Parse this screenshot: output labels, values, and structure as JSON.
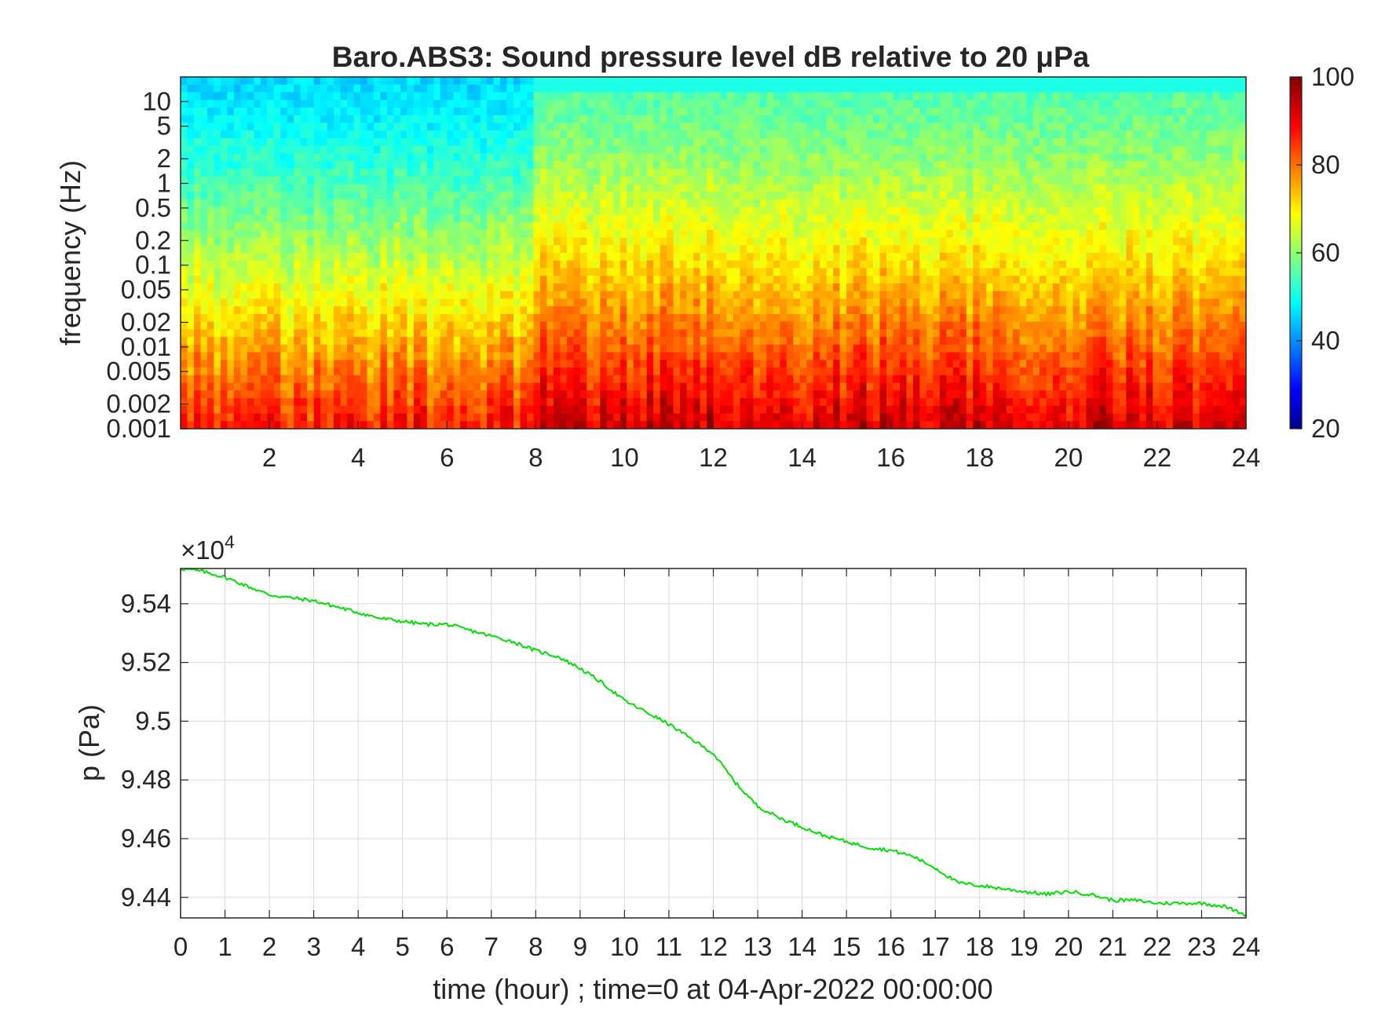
{
  "chart_data": [
    {
      "type": "heatmap",
      "title": "Baro.ABS3: Sound pressure level dB relative to 20 μPa",
      "ylabel": "frequency (Hz)",
      "xlabel": "",
      "x_ticks": [
        2,
        4,
        6,
        8,
        10,
        12,
        14,
        16,
        18,
        20,
        22,
        24
      ],
      "xlim": [
        0,
        24
      ],
      "y_scale": "log",
      "y_ticks": [
        "10",
        "5",
        "2",
        "1",
        "0.5",
        "0.2",
        "0.1",
        "0.05",
        "0.02",
        "0.01",
        "0.005",
        "0.002",
        "0.001"
      ],
      "y_tick_values": [
        10,
        5,
        2,
        1,
        0.5,
        0.2,
        0.1,
        0.05,
        0.02,
        0.01,
        0.005,
        0.002,
        0.001
      ],
      "ylim": [
        0.001,
        20
      ],
      "colormap": "jet",
      "colorbar": {
        "range": [
          20,
          100
        ],
        "ticks": [
          "100",
          "80",
          "60",
          "40",
          "20"
        ],
        "tick_values": [
          100,
          80,
          60,
          40,
          20
        ]
      },
      "time_segments": [
        {
          "from_hour": 0,
          "to_hour": 7.9,
          "high_freq_dB": 47,
          "low_freq_dB": 88
        },
        {
          "from_hour": 7.9,
          "to_hour": 24,
          "high_freq_dB": 56,
          "low_freq_dB": 94
        }
      ],
      "grid": false
    },
    {
      "type": "line",
      "xlabel": "time (hour) ; time=0 at 04-Apr-2022 00:00:00",
      "ylabel": "p (Pa)",
      "y_multiplier": "×10",
      "y_multiplier_exp": "4",
      "xlim": [
        0,
        24
      ],
      "ylim": [
        9.433,
        9.552
      ],
      "x_ticks": [
        "0",
        "1",
        "2",
        "3",
        "4",
        "5",
        "6",
        "7",
        "8",
        "9",
        "10",
        "11",
        "12",
        "13",
        "14",
        "15",
        "16",
        "17",
        "18",
        "19",
        "20",
        "21",
        "22",
        "23",
        "24"
      ],
      "y_ticks": [
        "9.54",
        "9.52",
        "9.5",
        "9.48",
        "9.46",
        "9.44"
      ],
      "y_tick_values": [
        9.54,
        9.52,
        9.5,
        9.48,
        9.46,
        9.44
      ],
      "grid": true,
      "color": "#00e000",
      "series": [
        {
          "x": [
            0,
            0.5,
            1,
            1.5,
            2,
            2.5,
            3,
            3.5,
            4,
            4.5,
            5,
            5.5,
            6,
            6.5,
            7,
            7.5,
            8,
            8.5,
            9,
            9.5,
            10,
            10.5,
            11,
            11.5,
            12,
            12.5,
            13,
            13.5,
            14,
            14.5,
            15,
            15.5,
            16,
            16.5,
            17,
            17.5,
            18,
            18.5,
            19,
            19.5,
            20,
            20.5,
            21,
            21.5,
            22,
            22.5,
            23,
            23.5,
            24
          ],
          "y": [
            9.552,
            9.551,
            9.549,
            9.546,
            9.543,
            9.542,
            9.541,
            9.539,
            9.537,
            9.535,
            9.534,
            9.533,
            9.533,
            9.531,
            9.529,
            9.527,
            9.524,
            9.522,
            9.518,
            9.513,
            9.507,
            9.503,
            9.499,
            9.494,
            9.489,
            9.479,
            9.471,
            9.467,
            9.464,
            9.461,
            9.459,
            9.457,
            9.456,
            9.454,
            9.45,
            9.445,
            9.444,
            9.443,
            9.442,
            9.441,
            9.442,
            9.441,
            9.439,
            9.439,
            9.438,
            9.438,
            9.438,
            9.437,
            9.434
          ]
        }
      ]
    }
  ]
}
